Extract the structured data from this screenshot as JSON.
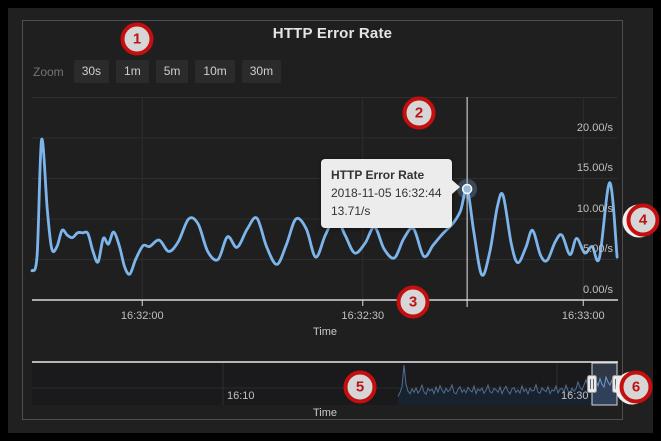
{
  "panel": {
    "title": "HTTP Error Rate"
  },
  "range_selector": {
    "zoom_label": "Zoom",
    "buttons": [
      "30s",
      "1m",
      "5m",
      "10m",
      "30m"
    ]
  },
  "tooltip": {
    "title": "HTTP Error Rate",
    "date": "2018-11-05 16:32:44",
    "value": "13.71/s"
  },
  "annotations": {
    "badge_labels": [
      "1",
      "2",
      "3",
      "4",
      "5",
      "6"
    ]
  },
  "chart_data": [
    {
      "type": "line",
      "role": "main-chart",
      "title": "HTTP Error Rate",
      "xlabel": "Time",
      "ylabel": "",
      "x_start_time": "16:31:45",
      "x_range_seconds": [
        0,
        79.7
      ],
      "ylim": [
        0,
        25
      ],
      "grid": true,
      "x_ticks": [
        {
          "t": 15,
          "label": "16:32:00"
        },
        {
          "t": 45,
          "label": "16:32:30"
        },
        {
          "t": 75,
          "label": "16:33:00"
        }
      ],
      "y_ticks": [
        {
          "v": 0,
          "label": "0.00/s"
        },
        {
          "v": 5,
          "label": "5.00/s"
        },
        {
          "v": 10,
          "label": "10.00/s"
        },
        {
          "v": 15,
          "label": "15.00/s"
        },
        {
          "v": 20,
          "label": "20.00/s"
        }
      ],
      "y_gridlines": [
        5,
        10,
        15,
        20,
        25
      ],
      "series": [
        {
          "name": "HTTP Error Rate",
          "color": "#7cb5ec",
          "points": [
            [
              0,
              3.6
            ],
            [
              0.7,
              5.5
            ],
            [
              1.3,
              19.8
            ],
            [
              2.1,
              11.0
            ],
            [
              2.7,
              6.3
            ],
            [
              3.4,
              6.6
            ],
            [
              4.1,
              8.6
            ],
            [
              4.8,
              8.0
            ],
            [
              5.5,
              7.7
            ],
            [
              6.2,
              8.3
            ],
            [
              6.9,
              8.3
            ],
            [
              7.6,
              8.2
            ],
            [
              8.3,
              6.0
            ],
            [
              9.0,
              4.7
            ],
            [
              9.7,
              7.6
            ],
            [
              10.4,
              6.9
            ],
            [
              11.1,
              8.4
            ],
            [
              11.9,
              6.6
            ],
            [
              12.6,
              4.1
            ],
            [
              13.3,
              3.2
            ],
            [
              14.1,
              5.0
            ],
            [
              15.1,
              6.7
            ],
            [
              16.0,
              6.6
            ],
            [
              17.3,
              7.4
            ],
            [
              18.6,
              6.0
            ],
            [
              19.9,
              7.2
            ],
            [
              21.3,
              10.0
            ],
            [
              22.6,
              9.4
            ],
            [
              23.9,
              6.0
            ],
            [
              25.3,
              5.0
            ],
            [
              26.6,
              7.8
            ],
            [
              27.9,
              6.5
            ],
            [
              29.3,
              8.8
            ],
            [
              30.6,
              10.1
            ],
            [
              31.9,
              6.6
            ],
            [
              33.3,
              4.4
            ],
            [
              34.6,
              6.8
            ],
            [
              35.9,
              10.0
            ],
            [
              37.3,
              8.8
            ],
            [
              38.6,
              5.3
            ],
            [
              39.9,
              8.0
            ],
            [
              41.3,
              10.2
            ],
            [
              42.6,
              8.0
            ],
            [
              43.9,
              5.8
            ],
            [
              45.3,
              7.0
            ],
            [
              46.6,
              9.0
            ],
            [
              47.9,
              6.3
            ],
            [
              49.3,
              5.2
            ],
            [
              50.6,
              7.6
            ],
            [
              51.9,
              8.8
            ],
            [
              53.3,
              5.4
            ],
            [
              54.6,
              6.8
            ],
            [
              55.9,
              8.2
            ],
            [
              57.3,
              9.5
            ],
            [
              58.3,
              11.0
            ],
            [
              59.2,
              13.71
            ],
            [
              60.1,
              8.5
            ],
            [
              61.2,
              3.1
            ],
            [
              62.3,
              6.0
            ],
            [
              63.3,
              11.5
            ],
            [
              64.1,
              12.9
            ],
            [
              65.2,
              7.0
            ],
            [
              66.1,
              4.6
            ],
            [
              67.2,
              6.5
            ],
            [
              68.1,
              8.6
            ],
            [
              69.2,
              5.5
            ],
            [
              70.1,
              4.9
            ],
            [
              71.2,
              7.2
            ],
            [
              72.1,
              8.0
            ],
            [
              73.2,
              5.6
            ],
            [
              74.1,
              7.6
            ],
            [
              75.2,
              5.8
            ],
            [
              76.2,
              6.6
            ],
            [
              77.2,
              5.2
            ],
            [
              78.6,
              14.5
            ],
            [
              79.6,
              5.3
            ]
          ]
        }
      ],
      "marked_point": {
        "t": 59.2,
        "v": 13.71,
        "time": "2018-11-05 16:32:44",
        "display": "13.71/s"
      }
    },
    {
      "type": "area",
      "role": "navigator",
      "xlabel": "Time",
      "x_ticks": [
        {
          "m": 0,
          "label": "16:10"
        },
        {
          "m": 20,
          "label": "16:30"
        }
      ],
      "series_color": "#6f9ccd",
      "values": [
        4.2,
        6.1,
        9.0,
        19.5,
        10.2,
        6.8,
        5.5,
        7.9,
        6.2,
        8.4,
        5.8,
        7.1,
        9.6,
        6.4,
        5.2,
        8.1,
        6.9,
        7.8,
        5.5,
        8.8,
        6.3,
        9.4,
        7.2,
        5.8,
        8.2,
        6.6,
        7.4,
        9.8,
        6.1,
        5.4,
        7.7,
        8.9,
        6.2,
        7.5,
        5.9,
        8.6,
        7.1,
        6.4,
        9.2,
        5.6,
        7.8,
        6.9,
        8.3,
        5.7,
        7.2,
        9.7,
        6.5,
        5.9,
        8.1,
        7.4,
        6.2,
        8.8,
        5.5,
        7.6,
        9.1,
        6.8,
        5.3,
        7.9,
        8.5,
        6.1,
        7.3,
        5.8,
        9.3,
        6.6,
        7.8,
        5.4,
        8.2,
        6.9,
        7.1,
        9.9,
        6.3,
        5.7,
        8.4,
        7.2,
        6.5,
        8.9,
        5.6,
        7.4,
        6.8,
        9.2,
        5.9,
        7.7,
        8.1,
        6.2,
        9.6,
        7.0,
        5.5,
        8.3,
        6.7,
        7.9,
        11.2,
        8.6,
        7.3,
        9.8,
        12.4,
        9.1,
        14.3,
        10.6,
        8.2,
        11.8,
        9.4,
        12.9,
        10.1,
        8.8,
        13.6,
        11.2,
        9.7,
        12.2,
        10.4,
        8.5
      ]
    }
  ]
}
